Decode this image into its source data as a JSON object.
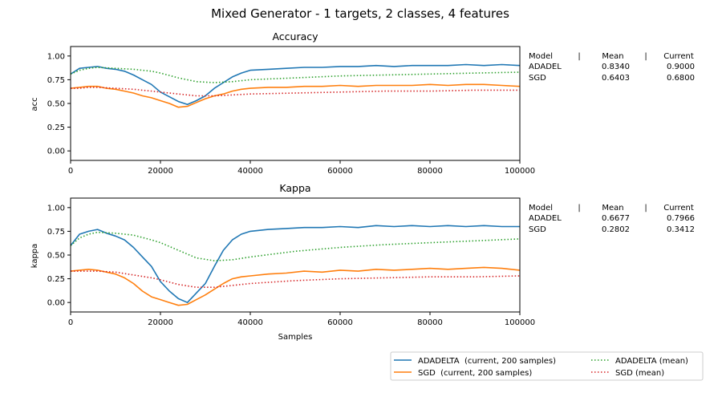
{
  "figure": {
    "title": "Mixed Generator - 1 targets, 2 classes, 4 features"
  },
  "chart_data": [
    {
      "type": "line",
      "title": "Accuracy",
      "xlabel": "",
      "ylabel": "acc",
      "xlim": [
        0,
        100000
      ],
      "ylim": [
        -0.1,
        1.1
      ],
      "xticks": [
        0,
        20000,
        40000,
        60000,
        80000,
        100000
      ],
      "xtick_labels": [
        "0",
        "20000",
        "40000",
        "60000",
        "80000",
        "100000"
      ],
      "yticks": [
        0.0,
        0.25,
        0.5,
        0.75,
        1.0
      ],
      "ytick_labels": [
        "0.00",
        "0.25",
        "0.50",
        "0.75",
        "1.00"
      ],
      "grid": false,
      "series": [
        {
          "name": "ADADELTA (current, 200 samples)",
          "color": "#1f77b4",
          "style": "solid",
          "x": [
            0,
            2000,
            4000,
            6000,
            8000,
            10000,
            12000,
            14000,
            16000,
            18000,
            20000,
            22000,
            24000,
            26000,
            28000,
            30000,
            32000,
            34000,
            36000,
            38000,
            40000,
            44000,
            48000,
            52000,
            56000,
            60000,
            64000,
            68000,
            72000,
            76000,
            80000,
            84000,
            88000,
            92000,
            96000,
            100000
          ],
          "y": [
            0.81,
            0.87,
            0.88,
            0.89,
            0.87,
            0.86,
            0.84,
            0.8,
            0.75,
            0.7,
            0.62,
            0.57,
            0.52,
            0.49,
            0.53,
            0.58,
            0.66,
            0.72,
            0.78,
            0.82,
            0.85,
            0.86,
            0.87,
            0.88,
            0.88,
            0.89,
            0.89,
            0.9,
            0.89,
            0.9,
            0.9,
            0.9,
            0.91,
            0.9,
            0.91,
            0.9
          ]
        },
        {
          "name": "SGD (current, 200 samples)",
          "color": "#ff7f0e",
          "style": "solid",
          "x": [
            0,
            2000,
            4000,
            6000,
            8000,
            10000,
            12000,
            14000,
            16000,
            18000,
            20000,
            22000,
            24000,
            26000,
            28000,
            30000,
            32000,
            34000,
            36000,
            38000,
            40000,
            44000,
            48000,
            52000,
            56000,
            60000,
            64000,
            68000,
            72000,
            76000,
            80000,
            84000,
            88000,
            92000,
            96000,
            100000
          ],
          "y": [
            0.66,
            0.67,
            0.68,
            0.68,
            0.66,
            0.65,
            0.63,
            0.61,
            0.58,
            0.56,
            0.53,
            0.5,
            0.46,
            0.47,
            0.51,
            0.55,
            0.58,
            0.6,
            0.63,
            0.65,
            0.66,
            0.67,
            0.67,
            0.68,
            0.68,
            0.69,
            0.68,
            0.69,
            0.69,
            0.69,
            0.7,
            0.69,
            0.7,
            0.7,
            0.69,
            0.68
          ]
        },
        {
          "name": "ADADELTA (mean)",
          "color": "#2ca02c",
          "style": "dotted",
          "x": [
            0,
            2000,
            4000,
            6000,
            10000,
            14000,
            18000,
            20000,
            24000,
            28000,
            32000,
            36000,
            40000,
            50000,
            60000,
            70000,
            80000,
            90000,
            100000
          ],
          "y": [
            0.81,
            0.85,
            0.87,
            0.88,
            0.87,
            0.86,
            0.84,
            0.82,
            0.77,
            0.73,
            0.72,
            0.73,
            0.75,
            0.77,
            0.79,
            0.8,
            0.81,
            0.82,
            0.83
          ]
        },
        {
          "name": "SGD (mean)",
          "color": "#d62728",
          "style": "dotted",
          "x": [
            0,
            2000,
            4000,
            6000,
            10000,
            14000,
            18000,
            20000,
            24000,
            28000,
            32000,
            36000,
            40000,
            50000,
            60000,
            70000,
            80000,
            90000,
            100000
          ],
          "y": [
            0.66,
            0.66,
            0.67,
            0.67,
            0.66,
            0.65,
            0.63,
            0.62,
            0.6,
            0.58,
            0.58,
            0.59,
            0.6,
            0.61,
            0.62,
            0.63,
            0.63,
            0.64,
            0.64
          ]
        }
      ]
    },
    {
      "type": "line",
      "title": "Kappa",
      "xlabel": "Samples",
      "ylabel": "kappa",
      "xlim": [
        0,
        100000
      ],
      "ylim": [
        -0.1,
        1.1
      ],
      "xticks": [
        0,
        20000,
        40000,
        60000,
        80000,
        100000
      ],
      "xtick_labels": [
        "0",
        "20000",
        "40000",
        "60000",
        "80000",
        "100000"
      ],
      "yticks": [
        0.0,
        0.25,
        0.5,
        0.75,
        1.0
      ],
      "ytick_labels": [
        "0.00",
        "0.25",
        "0.50",
        "0.75",
        "1.00"
      ],
      "grid": false,
      "series": [
        {
          "name": "ADADELTA (current, 200 samples)",
          "color": "#1f77b4",
          "style": "solid",
          "x": [
            0,
            2000,
            4000,
            6000,
            8000,
            10000,
            12000,
            14000,
            16000,
            18000,
            20000,
            22000,
            24000,
            26000,
            28000,
            30000,
            32000,
            34000,
            36000,
            38000,
            40000,
            44000,
            48000,
            52000,
            56000,
            60000,
            64000,
            68000,
            72000,
            76000,
            80000,
            84000,
            88000,
            92000,
            96000,
            100000
          ],
          "y": [
            0.6,
            0.72,
            0.75,
            0.77,
            0.73,
            0.7,
            0.66,
            0.58,
            0.48,
            0.38,
            0.22,
            0.12,
            0.04,
            0.0,
            0.1,
            0.2,
            0.38,
            0.55,
            0.66,
            0.72,
            0.75,
            0.77,
            0.78,
            0.79,
            0.79,
            0.8,
            0.79,
            0.81,
            0.8,
            0.81,
            0.8,
            0.81,
            0.8,
            0.81,
            0.8,
            0.8
          ]
        },
        {
          "name": "SGD (current, 200 samples)",
          "color": "#ff7f0e",
          "style": "solid",
          "x": [
            0,
            2000,
            4000,
            6000,
            8000,
            10000,
            12000,
            14000,
            16000,
            18000,
            20000,
            22000,
            24000,
            26000,
            28000,
            30000,
            32000,
            34000,
            36000,
            38000,
            40000,
            44000,
            48000,
            52000,
            56000,
            60000,
            64000,
            68000,
            72000,
            76000,
            80000,
            84000,
            88000,
            92000,
            96000,
            100000
          ],
          "y": [
            0.33,
            0.34,
            0.35,
            0.34,
            0.32,
            0.3,
            0.26,
            0.2,
            0.12,
            0.06,
            0.03,
            0.0,
            -0.03,
            -0.02,
            0.03,
            0.08,
            0.14,
            0.2,
            0.25,
            0.27,
            0.28,
            0.3,
            0.31,
            0.33,
            0.32,
            0.34,
            0.33,
            0.35,
            0.34,
            0.35,
            0.36,
            0.35,
            0.36,
            0.37,
            0.36,
            0.34
          ]
        },
        {
          "name": "ADADELTA (mean)",
          "color": "#2ca02c",
          "style": "dotted",
          "x": [
            0,
            2000,
            4000,
            6000,
            10000,
            14000,
            18000,
            20000,
            24000,
            28000,
            32000,
            36000,
            40000,
            50000,
            60000,
            70000,
            80000,
            90000,
            100000
          ],
          "y": [
            0.6,
            0.68,
            0.72,
            0.74,
            0.73,
            0.71,
            0.66,
            0.63,
            0.55,
            0.47,
            0.44,
            0.45,
            0.48,
            0.54,
            0.58,
            0.61,
            0.63,
            0.65,
            0.67
          ]
        },
        {
          "name": "SGD (mean)",
          "color": "#d62728",
          "style": "dotted",
          "x": [
            0,
            2000,
            4000,
            6000,
            10000,
            14000,
            18000,
            20000,
            24000,
            28000,
            32000,
            36000,
            40000,
            50000,
            60000,
            70000,
            80000,
            90000,
            100000
          ],
          "y": [
            0.33,
            0.33,
            0.33,
            0.33,
            0.32,
            0.29,
            0.26,
            0.24,
            0.19,
            0.16,
            0.16,
            0.18,
            0.2,
            0.23,
            0.25,
            0.26,
            0.27,
            0.27,
            0.28
          ]
        }
      ]
    }
  ],
  "tables": [
    {
      "header": [
        "Model",
        "|",
        "Mean",
        "|",
        "Current"
      ],
      "rows": [
        {
          "model": "ADADEL",
          "mean": "0.8340",
          "current": "0.9000"
        },
        {
          "model": "SGD",
          "mean": "0.6403",
          "current": "0.6800"
        }
      ]
    },
    {
      "header": [
        "Model",
        "|",
        "Mean",
        "|",
        "Current"
      ],
      "rows": [
        {
          "model": "ADADEL",
          "mean": "0.6677",
          "current": "0.7966"
        },
        {
          "model": "SGD",
          "mean": "0.2802",
          "current": "0.3412"
        }
      ]
    }
  ],
  "legend": {
    "placement": "bottom-right",
    "entries": [
      {
        "label": "ADADELTA  (current, 200 samples)",
        "color": "#1f77b4",
        "style": "solid"
      },
      {
        "label": "SGD  (current, 200 samples)",
        "color": "#ff7f0e",
        "style": "solid"
      },
      {
        "label": "ADADELTA (mean)",
        "color": "#2ca02c",
        "style": "dotted"
      },
      {
        "label": "SGD (mean)",
        "color": "#d62728",
        "style": "dotted"
      }
    ]
  }
}
